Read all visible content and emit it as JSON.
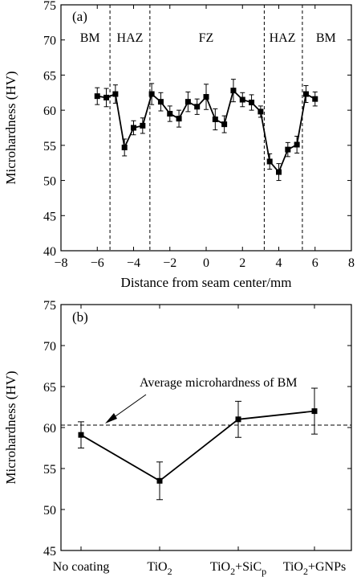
{
  "chart_data": [
    {
      "panel_label": "(a)",
      "type": "line",
      "xlabel": "Distance from seam center/mm",
      "ylabel": "Microhardness (HV)",
      "xlim": [
        -8,
        8
      ],
      "ylim": [
        40,
        75
      ],
      "xticks": [
        -8,
        -6,
        -4,
        -2,
        0,
        2,
        4,
        6,
        8
      ],
      "yticks": [
        40,
        45,
        50,
        55,
        60,
        65,
        70,
        75
      ],
      "zones": [
        {
          "label": "BM",
          "x_center": -6.4
        },
        {
          "label": "HAZ",
          "x_center": -4.2
        },
        {
          "label": "FZ",
          "x_center": 0
        },
        {
          "label": "HAZ",
          "x_center": 4.2
        },
        {
          "label": "BM",
          "x_center": 6.6
        }
      ],
      "zone_boundaries": [
        -5.3,
        -3.1,
        3.2,
        5.3
      ],
      "x": [
        -6,
        -5.5,
        -5,
        -4.5,
        -4,
        -3.5,
        -3,
        -2.5,
        -2,
        -1.5,
        -1,
        -0.5,
        0,
        0.5,
        1,
        1.5,
        2,
        2.5,
        3,
        3.5,
        4,
        4.5,
        5,
        5.5,
        6
      ],
      "values": [
        62.0,
        61.8,
        62.3,
        54.7,
        57.5,
        57.8,
        62.3,
        61.2,
        59.5,
        58.8,
        61.2,
        60.5,
        61.9,
        58.7,
        58.0,
        62.8,
        61.5,
        61.1,
        59.8,
        52.7,
        51.2,
        54.4,
        55.1,
        62.3,
        61.6
      ],
      "errors": [
        1.2,
        1.3,
        1.3,
        1.2,
        1.0,
        1.1,
        1.5,
        1.3,
        1.1,
        1.2,
        1.4,
        1.1,
        1.8,
        1.5,
        1.2,
        1.6,
        1.0,
        1.1,
        0.8,
        1.1,
        1.2,
        1.0,
        1.2,
        1.2,
        1.0
      ],
      "grid": false
    },
    {
      "panel_label": "(b)",
      "type": "line",
      "xlabel": "",
      "ylabel": "Microhardness (HV)",
      "ylim": [
        45,
        75
      ],
      "yticks": [
        45,
        50,
        55,
        60,
        65,
        70,
        75
      ],
      "categories": [
        {
          "parts": [
            {
              "t": "No coating",
              "sub": false
            }
          ]
        },
        {
          "parts": [
            {
              "t": "TiO",
              "sub": false
            },
            {
              "t": "2",
              "sub": true
            }
          ]
        },
        {
          "parts": [
            {
              "t": "TiO",
              "sub": false
            },
            {
              "t": "2",
              "sub": true
            },
            {
              "t": "+SiC",
              "sub": false
            },
            {
              "t": "p",
              "sub": true
            }
          ]
        },
        {
          "parts": [
            {
              "t": "TiO",
              "sub": false
            },
            {
              "t": "2",
              "sub": true
            },
            {
              "t": "+GNPs",
              "sub": false
            }
          ]
        }
      ],
      "values": [
        59.1,
        53.5,
        61.0,
        62.0
      ],
      "errors": [
        1.6,
        2.3,
        2.2,
        2.8
      ],
      "reference_line": {
        "value": 60.3,
        "label": "Average microhardness of BM"
      },
      "grid": false
    }
  ],
  "colors": {
    "line": "#000000",
    "background": "#ffffff"
  }
}
